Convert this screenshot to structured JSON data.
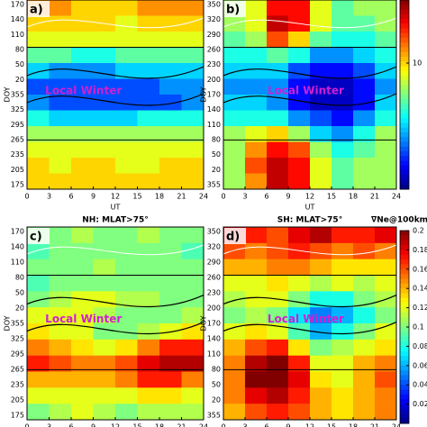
{
  "chart_data": [
    {
      "type": "heatmap",
      "label": "a)",
      "xlabel": "UT",
      "annotation": "Local Winter",
      "xlim": [
        0,
        24
      ],
      "xticks": [
        0,
        3,
        6,
        9,
        12,
        15,
        18,
        21,
        24
      ],
      "ytick_labels": [
        "170",
        "140",
        "110",
        "80",
        "50",
        "20",
        "355",
        "325",
        "295",
        "265",
        "235",
        "205",
        "175"
      ],
      "clim": [
        0,
        15
      ],
      "values": [
        [
          11,
          11,
          10,
          10,
          10,
          11,
          11,
          11
        ],
        [
          10,
          10,
          10,
          10,
          9,
          10,
          10,
          10
        ],
        [
          9,
          9,
          9,
          9,
          9,
          9,
          9,
          9
        ],
        [
          7,
          7,
          6,
          6,
          7,
          7,
          7,
          7
        ],
        [
          5,
          4,
          4,
          4,
          5,
          5,
          5,
          5
        ],
        [
          3,
          3,
          3,
          3,
          3,
          3,
          4,
          4
        ],
        [
          4,
          3,
          3,
          3,
          3,
          3,
          3,
          4
        ],
        [
          6,
          5,
          5,
          5,
          5,
          6,
          6,
          6
        ],
        [
          8,
          8,
          8,
          8,
          8,
          8,
          8,
          8
        ],
        [
          9,
          9,
          9,
          9,
          9,
          9,
          9,
          9
        ],
        [
          10,
          9,
          10,
          10,
          9,
          9,
          10,
          10
        ],
        [
          10,
          10,
          10,
          10,
          10,
          10,
          10,
          10
        ]
      ]
    },
    {
      "type": "heatmap",
      "label": "b)",
      "xlabel": "UT",
      "annotation": "Local Winter",
      "xlim": [
        0,
        24
      ],
      "xticks": [
        0,
        3,
        6,
        9,
        12,
        15,
        18,
        21,
        24
      ],
      "ytick_labels": [
        "350",
        "320",
        "290",
        "260",
        "230",
        "200",
        "170",
        "140",
        "110",
        "80",
        "50",
        "20",
        "355"
      ],
      "clim": [
        0,
        15
      ],
      "cticks": [
        10
      ],
      "values": [
        [
          8,
          9,
          13,
          13,
          9,
          7,
          8,
          8
        ],
        [
          8,
          9,
          14,
          13,
          9,
          7,
          7,
          8
        ],
        [
          7,
          8,
          12,
          10,
          7,
          6,
          6,
          7
        ],
        [
          6,
          6,
          7,
          6,
          4,
          4,
          5,
          6
        ],
        [
          5,
          5,
          5,
          3,
          2,
          2,
          3,
          5
        ],
        [
          4,
          4,
          4,
          2,
          1,
          1,
          2,
          4
        ],
        [
          5,
          5,
          4,
          2,
          1,
          1,
          2,
          5
        ],
        [
          6,
          6,
          6,
          4,
          3,
          2,
          4,
          6
        ],
        [
          8,
          9,
          10,
          8,
          5,
          4,
          6,
          8
        ],
        [
          8,
          11,
          13,
          12,
          8,
          6,
          7,
          8
        ],
        [
          8,
          12,
          14,
          13,
          9,
          7,
          8,
          8
        ],
        [
          8,
          11,
          14,
          13,
          9,
          7,
          8,
          8
        ]
      ]
    },
    {
      "type": "heatmap",
      "label": "c)",
      "title": "NH: MLAT>75°",
      "annotation": "Local Winter",
      "xlim": [
        0,
        24
      ],
      "xticks": [
        0,
        3,
        6,
        9,
        12,
        15,
        18,
        21,
        24
      ],
      "ytick_labels": [
        "170",
        "140",
        "110",
        "80",
        "50",
        "20",
        "355",
        "325",
        "295",
        "265",
        "235",
        "205",
        "175"
      ],
      "clim": [
        0,
        0.2
      ],
      "values": [
        [
          0.1,
          0.1,
          0.11,
          0.1,
          0.1,
          0.11,
          0.1,
          0.1
        ],
        [
          0.09,
          0.1,
          0.1,
          0.1,
          0.1,
          0.1,
          0.1,
          0.09
        ],
        [
          0.1,
          0.1,
          0.1,
          0.11,
          0.1,
          0.1,
          0.1,
          0.1
        ],
        [
          0.09,
          0.1,
          0.1,
          0.1,
          0.1,
          0.1,
          0.1,
          0.1
        ],
        [
          0.1,
          0.11,
          0.12,
          0.12,
          0.11,
          0.11,
          0.1,
          0.1
        ],
        [
          0.12,
          0.12,
          0.12,
          0.11,
          0.1,
          0.1,
          0.1,
          0.11
        ],
        [
          0.13,
          0.12,
          0.12,
          0.1,
          0.1,
          0.11,
          0.12,
          0.13
        ],
        [
          0.15,
          0.14,
          0.13,
          0.12,
          0.13,
          0.15,
          0.17,
          0.17
        ],
        [
          0.17,
          0.16,
          0.15,
          0.15,
          0.16,
          0.18,
          0.19,
          0.19
        ],
        [
          0.14,
          0.14,
          0.14,
          0.14,
          0.15,
          0.17,
          0.17,
          0.15
        ],
        [
          0.12,
          0.12,
          0.12,
          0.12,
          0.12,
          0.13,
          0.13,
          0.12
        ],
        [
          0.1,
          0.11,
          0.12,
          0.11,
          0.1,
          0.11,
          0.11,
          0.11
        ]
      ]
    },
    {
      "type": "heatmap",
      "label": "d)",
      "title": "SH: MLAT>75°",
      "colorbar_title": "∇Ne@100km",
      "annotation": "Local Winter",
      "xlim": [
        0,
        24
      ],
      "xticks": [
        0,
        3,
        6,
        9,
        12,
        15,
        18,
        21,
        24
      ],
      "ytick_labels": [
        "350",
        "320",
        "290",
        "260",
        "230",
        "200",
        "170",
        "140",
        "110",
        "80",
        "50",
        "20",
        "355"
      ],
      "clim": [
        0,
        0.2
      ],
      "cticks": [
        0.2,
        0.18,
        0.16,
        0.14,
        0.12,
        0.1,
        0.08,
        0.06,
        0.04,
        0.02
      ],
      "values": [
        [
          0.18,
          0.17,
          0.16,
          0.18,
          0.19,
          0.17,
          0.17,
          0.18
        ],
        [
          0.16,
          0.15,
          0.16,
          0.17,
          0.16,
          0.15,
          0.16,
          0.15
        ],
        [
          0.14,
          0.14,
          0.15,
          0.15,
          0.14,
          0.13,
          0.13,
          0.13
        ],
        [
          0.12,
          0.12,
          0.13,
          0.12,
          0.11,
          0.12,
          0.11,
          0.12
        ],
        [
          0.11,
          0.12,
          0.12,
          0.1,
          0.08,
          0.08,
          0.1,
          0.11
        ],
        [
          0.1,
          0.11,
          0.1,
          0.07,
          0.05,
          0.06,
          0.08,
          0.1
        ],
        [
          0.12,
          0.13,
          0.12,
          0.09,
          0.06,
          0.08,
          0.1,
          0.12
        ],
        [
          0.14,
          0.16,
          0.17,
          0.13,
          0.1,
          0.11,
          0.12,
          0.13
        ],
        [
          0.15,
          0.19,
          0.2,
          0.17,
          0.12,
          0.12,
          0.14,
          0.15
        ],
        [
          0.15,
          0.2,
          0.2,
          0.18,
          0.13,
          0.12,
          0.14,
          0.16
        ],
        [
          0.15,
          0.18,
          0.19,
          0.17,
          0.14,
          0.13,
          0.14,
          0.15
        ],
        [
          0.14,
          0.16,
          0.17,
          0.16,
          0.14,
          0.13,
          0.14,
          0.15
        ]
      ]
    }
  ]
}
